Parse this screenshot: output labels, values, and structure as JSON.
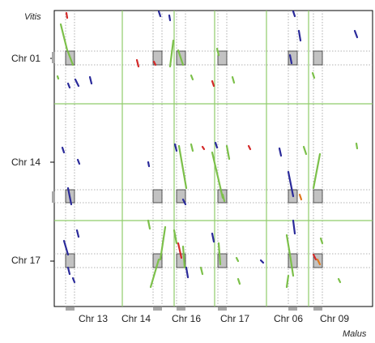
{
  "y_axis_title": "Vitis",
  "x_axis_title": "Malus",
  "y_chromosomes": [
    "Chr 01",
    "Chr 14",
    "Chr 17"
  ],
  "x_chromosomes": [
    "Chr 13",
    "Chr 14",
    "Chr 16",
    "Chr 17",
    "Chr 06",
    "Chr 09"
  ],
  "colors": {
    "frame": "#000000",
    "boundary_line": "#8fcc6a",
    "dotted_guide": "#9a9a9a",
    "highlight_box_fill": "#a8a8a8",
    "dot_blue": "#2a2a9a",
    "dot_green": "#7cc04a",
    "dot_red": "#d42a2a",
    "dot_orange": "#e07a20"
  }
}
